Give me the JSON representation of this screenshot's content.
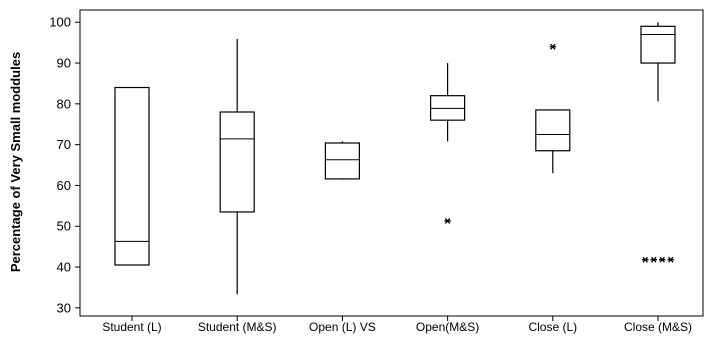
{
  "chart_data": {
    "type": "boxplot",
    "ylabel": "Percentage of Very Small moddules",
    "ylim": [
      28,
      103
    ],
    "yticks": [
      30,
      40,
      50,
      60,
      70,
      80,
      90,
      100
    ],
    "categories": [
      "Student (L)",
      "Student (M&S)",
      "Open (L) VS",
      "Open(M&S)",
      "Close (L)",
      "Close (M&S)"
    ],
    "boxes": [
      {
        "category": "Student (L)",
        "whisker_low": 40.5,
        "q1": 40.5,
        "median": 46.3,
        "q3": 84.0,
        "whisker_high": 84.0,
        "outliers": []
      },
      {
        "category": "Student (M&S)",
        "whisker_low": 33.3,
        "q1": 53.5,
        "median": 71.4,
        "q3": 78.0,
        "whisker_high": 95.9,
        "outliers": []
      },
      {
        "category": "Open (L) VS",
        "whisker_low": 61.4,
        "q1": 61.6,
        "median": 66.3,
        "q3": 70.4,
        "whisker_high": 70.8,
        "outliers": []
      },
      {
        "category": "Open(M&S)",
        "whisker_low": 70.8,
        "q1": 76.0,
        "median": 78.9,
        "q3": 82.0,
        "whisker_high": 90.0,
        "outliers": [
          51.3
        ]
      },
      {
        "category": "Close (L)",
        "whisker_low": 63.0,
        "q1": 68.5,
        "median": 72.5,
        "q3": 78.5,
        "whisker_high": 78.5,
        "outliers": [
          94.0
        ]
      },
      {
        "category": "Close (M&S)",
        "whisker_low": 80.6,
        "q1": 90.0,
        "median": 97.0,
        "q3": 99.0,
        "whisker_high": 100.0,
        "outliers": [
          41.8,
          41.8,
          41.8,
          41.8
        ]
      }
    ],
    "grid": false,
    "legend": "none"
  }
}
